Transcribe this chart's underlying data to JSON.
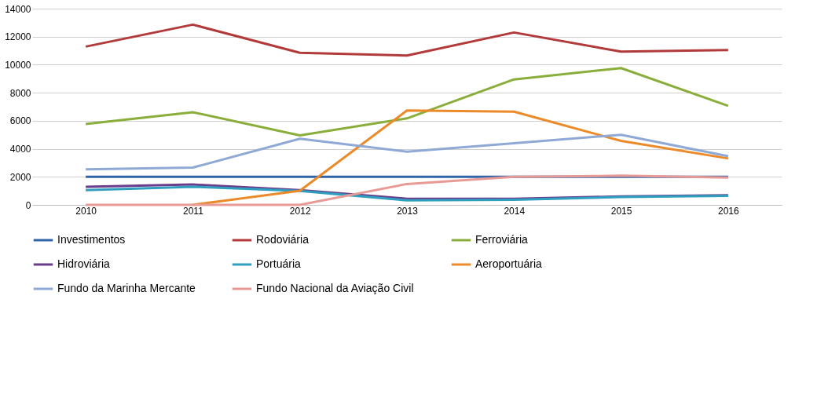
{
  "chart_data": {
    "type": "line",
    "categories": [
      "2010",
      "2011",
      "2012",
      "2013",
      "2014",
      "2015",
      "2016"
    ],
    "ylim": [
      0,
      14000
    ],
    "yticks": [
      0,
      2000,
      4000,
      6000,
      8000,
      10000,
      12000,
      14000
    ],
    "grid": "y",
    "legend": "bottom",
    "marker": "none",
    "line_style": "solid",
    "series": [
      {
        "name": "Investimentos",
        "color": "#2e64a8",
        "values": [
          2000,
          2000,
          2000,
          2000,
          2000,
          2000,
          2000
        ]
      },
      {
        "name": "Rodoviária",
        "color": "#b33a3a",
        "values": [
          11290,
          12860,
          10850,
          10650,
          12300,
          10930,
          11050
        ]
      },
      {
        "name": "Ferroviária",
        "color": "#8aae3c",
        "values": [
          5770,
          6610,
          4960,
          6170,
          8950,
          9760,
          7060
        ]
      },
      {
        "name": "Hidroviária",
        "color": "#6a3d8c",
        "values": [
          1290,
          1450,
          1050,
          440,
          440,
          600,
          690
        ]
      },
      {
        "name": "Portuária",
        "color": "#2f9fc0",
        "values": [
          1050,
          1290,
          1000,
          320,
          360,
          560,
          650
        ]
      },
      {
        "name": "Aeroportuária",
        "color": "#ec8a2a",
        "values": [
          null,
          0,
          1010,
          6730,
          6650,
          4560,
          3310
        ]
      },
      {
        "name": "Fundo da Marinha Mercante",
        "color": "#8fa9d6",
        "values": [
          2540,
          2660,
          4720,
          3790,
          4400,
          5000,
          3470
        ]
      },
      {
        "name": "Fundo Nacional da Aviação Civil",
        "color": "#e89a96",
        "values": [
          0,
          0,
          0,
          1490,
          2000,
          2080,
          1940
        ]
      }
    ]
  }
}
